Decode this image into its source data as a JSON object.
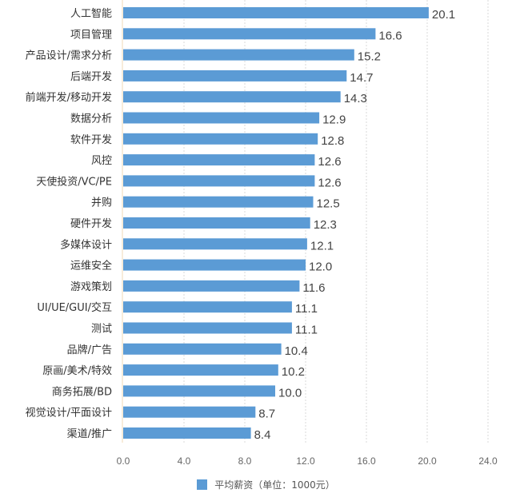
{
  "chart_data": {
    "type": "bar",
    "orientation": "horizontal",
    "title": "",
    "xlabel": "",
    "ylabel": "",
    "categories": [
      "人工智能",
      "项目管理",
      "产品设计/需求分析",
      "后端开发",
      "前端开发/移动开发",
      "数据分析",
      "软件开发",
      "风控",
      "天使投资/VC/PE",
      "并购",
      "硬件开发",
      "多媒体设计",
      "运维安全",
      "游戏策划",
      "UI/UE/GUI/交互",
      "测试",
      "品牌/广告",
      "原画/美术/特效",
      "商务拓展/BD",
      "视觉设计/平面设计",
      "渠道/推广"
    ],
    "series": [
      {
        "name": "平均薪资（单位：1000元）",
        "color": "#5b9bd5",
        "values": [
          20.1,
          16.6,
          15.2,
          14.7,
          14.3,
          12.9,
          12.8,
          12.6,
          12.6,
          12.5,
          12.3,
          12.1,
          12.0,
          11.6,
          11.1,
          11.1,
          10.4,
          10.2,
          10.0,
          8.7,
          8.4
        ],
        "value_labels": [
          "20.1",
          "16.6",
          "15.2",
          "14.7",
          "14.3",
          "12.9",
          "12.8",
          "12.6",
          "12.6",
          "12.5",
          "12.3",
          "12.1",
          "12.0",
          "11.6",
          "11.1",
          "11.1",
          "10.4",
          "10.2",
          "10.0",
          "8.7",
          "8.4"
        ]
      }
    ],
    "xlim": [
      0,
      24
    ],
    "x_ticks": [
      "0.0",
      "4.0",
      "8.0",
      "12.0",
      "16.0",
      "20.0",
      "24.0"
    ],
    "x_tick_values": [
      0,
      4,
      8,
      12,
      16,
      20,
      24
    ],
    "grid": true,
    "legend": {
      "position": "bottom-center",
      "entries": [
        "平均薪资（单位：1000元）"
      ]
    }
  }
}
